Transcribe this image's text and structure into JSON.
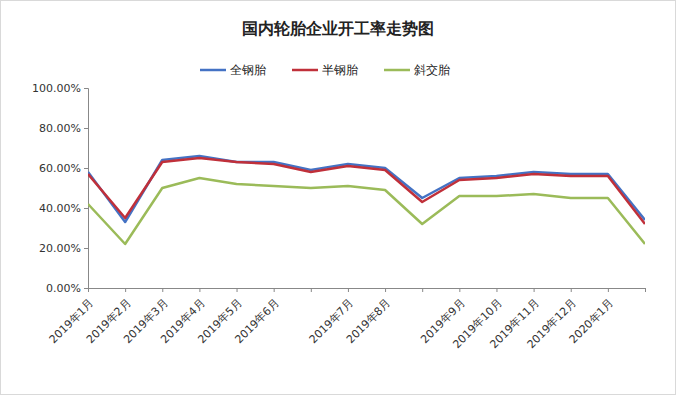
{
  "chart_data": {
    "type": "line",
    "title": "国内轮胎企业开工率走势图",
    "categories": [
      "2019年1月",
      "2019年2月",
      "2019年3月",
      "2019年4月",
      "2019年5月",
      "2019年6月",
      null,
      "2019年7月",
      "2019年8月",
      null,
      "2019年9月",
      "2019年10月",
      "2019年11月",
      "2019年12月",
      "2020年1月",
      null
    ],
    "series": [
      {
        "name": "全钢胎",
        "color": "#4472c4",
        "values": [
          58,
          33,
          64,
          66,
          63,
          63,
          59,
          62,
          60,
          45,
          55,
          56,
          58,
          57,
          57,
          34
        ]
      },
      {
        "name": "半钢胎",
        "color": "#c0303a",
        "values": [
          57,
          35,
          63,
          65,
          63,
          62,
          58,
          61,
          59,
          43,
          54,
          55,
          57,
          56,
          56,
          32
        ]
      },
      {
        "name": "斜交胎",
        "color": "#9bbb59",
        "values": [
          42,
          22,
          50,
          55,
          52,
          51,
          50,
          51,
          49,
          32,
          46,
          46,
          47,
          45,
          45,
          22
        ]
      }
    ],
    "ylim": [
      0,
      100
    ],
    "yticks": [
      {
        "value": 0,
        "label": "0.00%"
      },
      {
        "value": 20,
        "label": "20.00%"
      },
      {
        "value": 40,
        "label": "40.00%"
      },
      {
        "value": 60,
        "label": "60.00%"
      },
      {
        "value": 80,
        "label": "80.00%"
      },
      {
        "value": 100,
        "label": "100.00%"
      }
    ],
    "grid": false,
    "legend": "top"
  }
}
